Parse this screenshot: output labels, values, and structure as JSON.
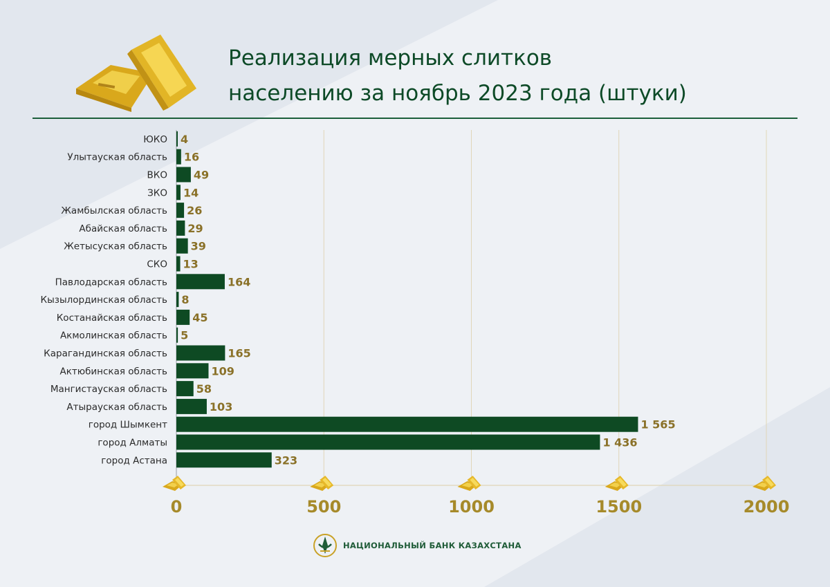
{
  "header": {
    "title_line1": "Реализация мерных слитков",
    "title_line2": "населению за ноябрь 2023 года (штуки)"
  },
  "footer": {
    "label": "НАЦИОНАЛЬНЫЙ БАНК КАЗАХСТАНА"
  },
  "colors": {
    "bar": "#0e4a23",
    "value_label": "#8a7128",
    "axis_tick": "#a68a2a",
    "title": "#0d4a27",
    "grid": "#e0d6b8",
    "gold": "#e8be2c"
  },
  "icons": {
    "header": "gold-bars-icon",
    "axis_marker": "gold-bar-icon",
    "footer": "bank-emblem-icon"
  },
  "chart_data": {
    "type": "bar",
    "orientation": "horizontal",
    "title": "Реализация мерных слитков населению за ноябрь 2023 года (штуки)",
    "xlim": [
      0,
      2000
    ],
    "xticks": [
      0,
      500,
      1000,
      1500,
      2000
    ],
    "grid": true,
    "categories": [
      "ЮКО",
      "Улытауская  область",
      "ВКО",
      "ЗКО",
      "Жамбылская  область",
      "Абайская  область",
      "Жетысуская  область",
      "СКО",
      "Павлодарская область",
      "Кызылординская область",
      "Костанайская область",
      "Акмолинская область",
      "Карагандинская область",
      "Актюбинская область",
      "Мангистауская область",
      "Атырауская область",
      "город Шымкент",
      "город Алматы",
      "город Астана"
    ],
    "values": [
      4,
      16,
      49,
      14,
      26,
      29,
      39,
      13,
      164,
      8,
      45,
      5,
      165,
      109,
      58,
      103,
      1565,
      1436,
      323
    ],
    "value_labels": [
      "4",
      "16",
      "49",
      "14",
      "26",
      "29",
      "39",
      "13",
      "164",
      "8",
      "45",
      "5",
      "165",
      "109",
      "58",
      "103",
      "1 565",
      "1 436",
      "323"
    ]
  }
}
